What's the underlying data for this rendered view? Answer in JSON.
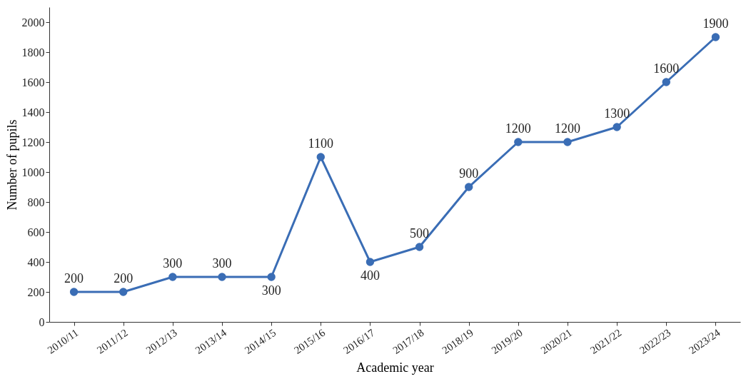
{
  "chart_data": {
    "type": "line",
    "xlabel": "Academic year",
    "ylabel": "Number of pupils",
    "categories": [
      "2010/11",
      "2011/12",
      "2012/13",
      "2013/14",
      "2014/15",
      "2015/16",
      "2016/17",
      "2017/18",
      "2018/19",
      "2019/20",
      "2020/21",
      "2021/22",
      "2022/23",
      "2023/24"
    ],
    "series": [
      {
        "color": "#3a6db5",
        "values": [
          200,
          200,
          300,
          300,
          300,
          1100,
          400,
          500,
          900,
          1200,
          1200,
          1300,
          1600,
          1900
        ]
      }
    ],
    "ylim": [
      0,
      2100
    ],
    "yticks": [
      0,
      200,
      400,
      600,
      800,
      1000,
      1200,
      1400,
      1600,
      1800,
      2000
    ],
    "grid": false,
    "legend": false,
    "marker": "circle",
    "line_style": "solid",
    "data_labels": true
  }
}
